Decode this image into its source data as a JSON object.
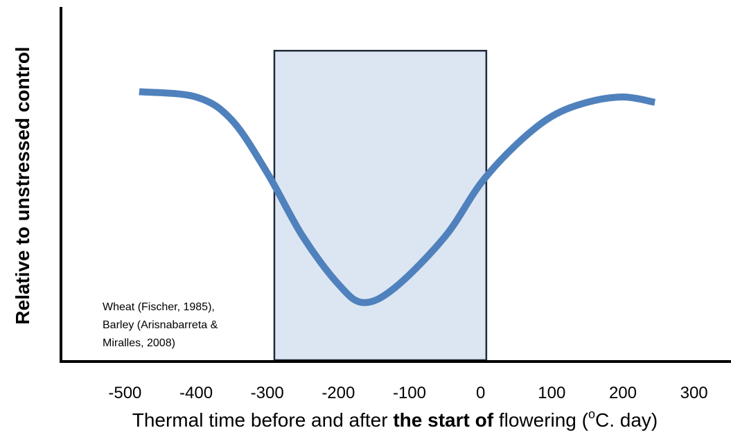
{
  "chart_data": {
    "type": "line",
    "ylabel": "Relative to unstressed control",
    "xlabel_parts": [
      "Thermal time before and after ",
      "the start of",
      " flowering (",
      "o",
      "C. day)"
    ],
    "annotation": [
      "Wheat (Fischer, 1985),",
      "Barley (Arisnabarreta &",
      "Miralles, 2008)"
    ],
    "x": [
      -480,
      -400,
      -350,
      -300,
      -250,
      -200,
      -165,
      -120,
      -50,
      0,
      50,
      100,
      150,
      200,
      245
    ],
    "series": [
      {
        "color": "#4f81bd",
        "values": [
          0.76,
          0.745,
          0.68,
          0.53,
          0.35,
          0.215,
          0.163,
          0.206,
          0.35,
          0.5,
          0.61,
          0.69,
          0.73,
          0.745,
          0.73
        ]
      }
    ],
    "shaded_region": {
      "x": [
        -290,
        8
      ],
      "y": [
        0,
        0.876
      ],
      "color": "#dce6f2"
    },
    "xlim": [
      -590,
      352
    ],
    "ylim": [
      0,
      1
    ],
    "xticks": [
      -500,
      -400,
      -300,
      -200,
      -100,
      0,
      100,
      200,
      300
    ]
  }
}
